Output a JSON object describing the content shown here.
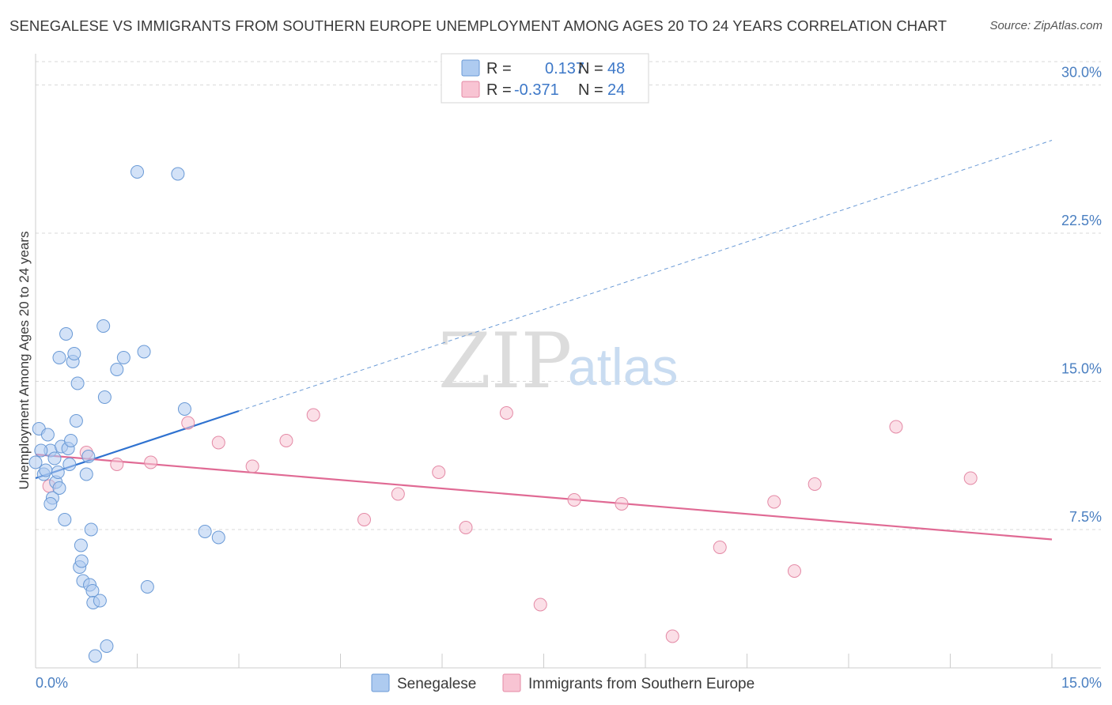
{
  "title": "SENEGALESE VS IMMIGRANTS FROM SOUTHERN EUROPE UNEMPLOYMENT AMONG AGES 20 TO 24 YEARS CORRELATION CHART",
  "source": "Source: ZipAtlas.com",
  "watermark": {
    "zip": "ZIP",
    "atlas": "atlas"
  },
  "legend": {
    "rows": [
      {
        "r_label": "R =",
        "r_value": "0.137",
        "n_label": "N =",
        "n_value": "48"
      },
      {
        "r_label": "R =",
        "r_value": "-0.371",
        "n_label": "N =",
        "n_value": "24"
      }
    ]
  },
  "bottom_legend": {
    "items": [
      {
        "label": "Senegalese"
      },
      {
        "label": "Immigrants from Southern Europe"
      }
    ]
  },
  "colors": {
    "blue_fill": "#aecbf0",
    "blue_stroke": "#6a9ad6",
    "blue_line": "#2f72d0",
    "pink_fill": "#f8c4d3",
    "pink_stroke": "#e48aa6",
    "pink_line": "#e06a94",
    "grid": "#d9d9d9",
    "tick_text": "#4a7fc1"
  },
  "chart_data": {
    "type": "scatter",
    "title": "SENEGALESE VS IMMIGRANTS FROM SOUTHERN EUROPE UNEMPLOYMENT AMONG AGES 20 TO 24 YEARS CORRELATION CHART",
    "xlabel": "",
    "ylabel": "Unemployment Among Ages 20 to 24 years",
    "xlim": [
      0,
      15
    ],
    "ylim": [
      0.5,
      31.5
    ],
    "x_tick_labels": [
      "0.0%",
      "15.0%"
    ],
    "y_ticks": [
      {
        "value": 7.5,
        "label": "7.5%"
      },
      {
        "value": 15.0,
        "label": "15.0%"
      },
      {
        "value": 22.5,
        "label": "22.5%"
      },
      {
        "value": 30.0,
        "label": "30.0%"
      }
    ],
    "grid": "horizontal dashed",
    "legend_placement": "top-center",
    "series": [
      {
        "name": "Senegalese",
        "color": "#aecbf0",
        "points": [
          [
            0.05,
            12.6
          ],
          [
            0.12,
            10.3
          ],
          [
            0.18,
            12.3
          ],
          [
            0.22,
            11.5
          ],
          [
            0.25,
            9.1
          ],
          [
            0.28,
            11.1
          ],
          [
            0.3,
            9.9
          ],
          [
            0.33,
            10.4
          ],
          [
            0.35,
            9.6
          ],
          [
            0.38,
            11.7
          ],
          [
            0.43,
            8.0
          ],
          [
            0.45,
            17.4
          ],
          [
            0.48,
            11.6
          ],
          [
            0.5,
            10.8
          ],
          [
            0.52,
            12.0
          ],
          [
            0.55,
            16.0
          ],
          [
            0.57,
            16.4
          ],
          [
            0.6,
            13.0
          ],
          [
            0.62,
            14.9
          ],
          [
            0.65,
            5.6
          ],
          [
            0.67,
            6.7
          ],
          [
            0.68,
            5.9
          ],
          [
            0.7,
            4.9
          ],
          [
            0.75,
            10.3
          ],
          [
            0.78,
            11.2
          ],
          [
            0.8,
            4.7
          ],
          [
            0.82,
            7.5
          ],
          [
            0.84,
            4.4
          ],
          [
            0.85,
            3.8
          ],
          [
            0.88,
            1.1
          ],
          [
            0.95,
            3.9
          ],
          [
            1.0,
            17.8
          ],
          [
            1.05,
            1.6
          ],
          [
            1.02,
            14.2
          ],
          [
            1.2,
            15.6
          ],
          [
            1.3,
            16.2
          ],
          [
            1.5,
            25.6
          ],
          [
            1.6,
            16.5
          ],
          [
            1.65,
            4.6
          ],
          [
            2.1,
            25.5
          ],
          [
            2.2,
            13.6
          ],
          [
            2.5,
            7.4
          ],
          [
            2.7,
            7.1
          ],
          [
            0.0,
            10.9
          ],
          [
            0.08,
            11.5
          ],
          [
            0.15,
            10.5
          ],
          [
            0.35,
            16.2
          ],
          [
            0.22,
            8.8
          ]
        ]
      },
      {
        "name": "Immigrants from Southern Europe",
        "color": "#f8c4d3",
        "points": [
          [
            0.2,
            9.7
          ],
          [
            0.75,
            11.4
          ],
          [
            1.2,
            10.8
          ],
          [
            1.7,
            10.9
          ],
          [
            2.25,
            12.9
          ],
          [
            2.7,
            11.9
          ],
          [
            3.2,
            10.7
          ],
          [
            3.7,
            12.0
          ],
          [
            4.1,
            13.3
          ],
          [
            4.85,
            8.0
          ],
          [
            5.35,
            9.3
          ],
          [
            5.95,
            10.4
          ],
          [
            6.35,
            7.6
          ],
          [
            6.95,
            13.4
          ],
          [
            7.45,
            3.7
          ],
          [
            7.95,
            9.0
          ],
          [
            8.65,
            8.8
          ],
          [
            9.4,
            2.1
          ],
          [
            10.1,
            6.6
          ],
          [
            10.9,
            8.9
          ],
          [
            11.2,
            5.4
          ],
          [
            11.5,
            9.8
          ],
          [
            12.7,
            12.7
          ],
          [
            13.8,
            10.1
          ]
        ]
      }
    ],
    "trend_lines": [
      {
        "series": "Senegalese",
        "solid": [
          [
            0.0,
            10.1
          ],
          [
            3.0,
            13.5
          ]
        ],
        "dashed": [
          [
            3.0,
            13.5
          ],
          [
            15.0,
            27.2
          ]
        ]
      },
      {
        "series": "Immigrants from Southern Europe",
        "solid": [
          [
            0.0,
            11.3
          ],
          [
            15.0,
            7.0
          ]
        ]
      }
    ]
  }
}
